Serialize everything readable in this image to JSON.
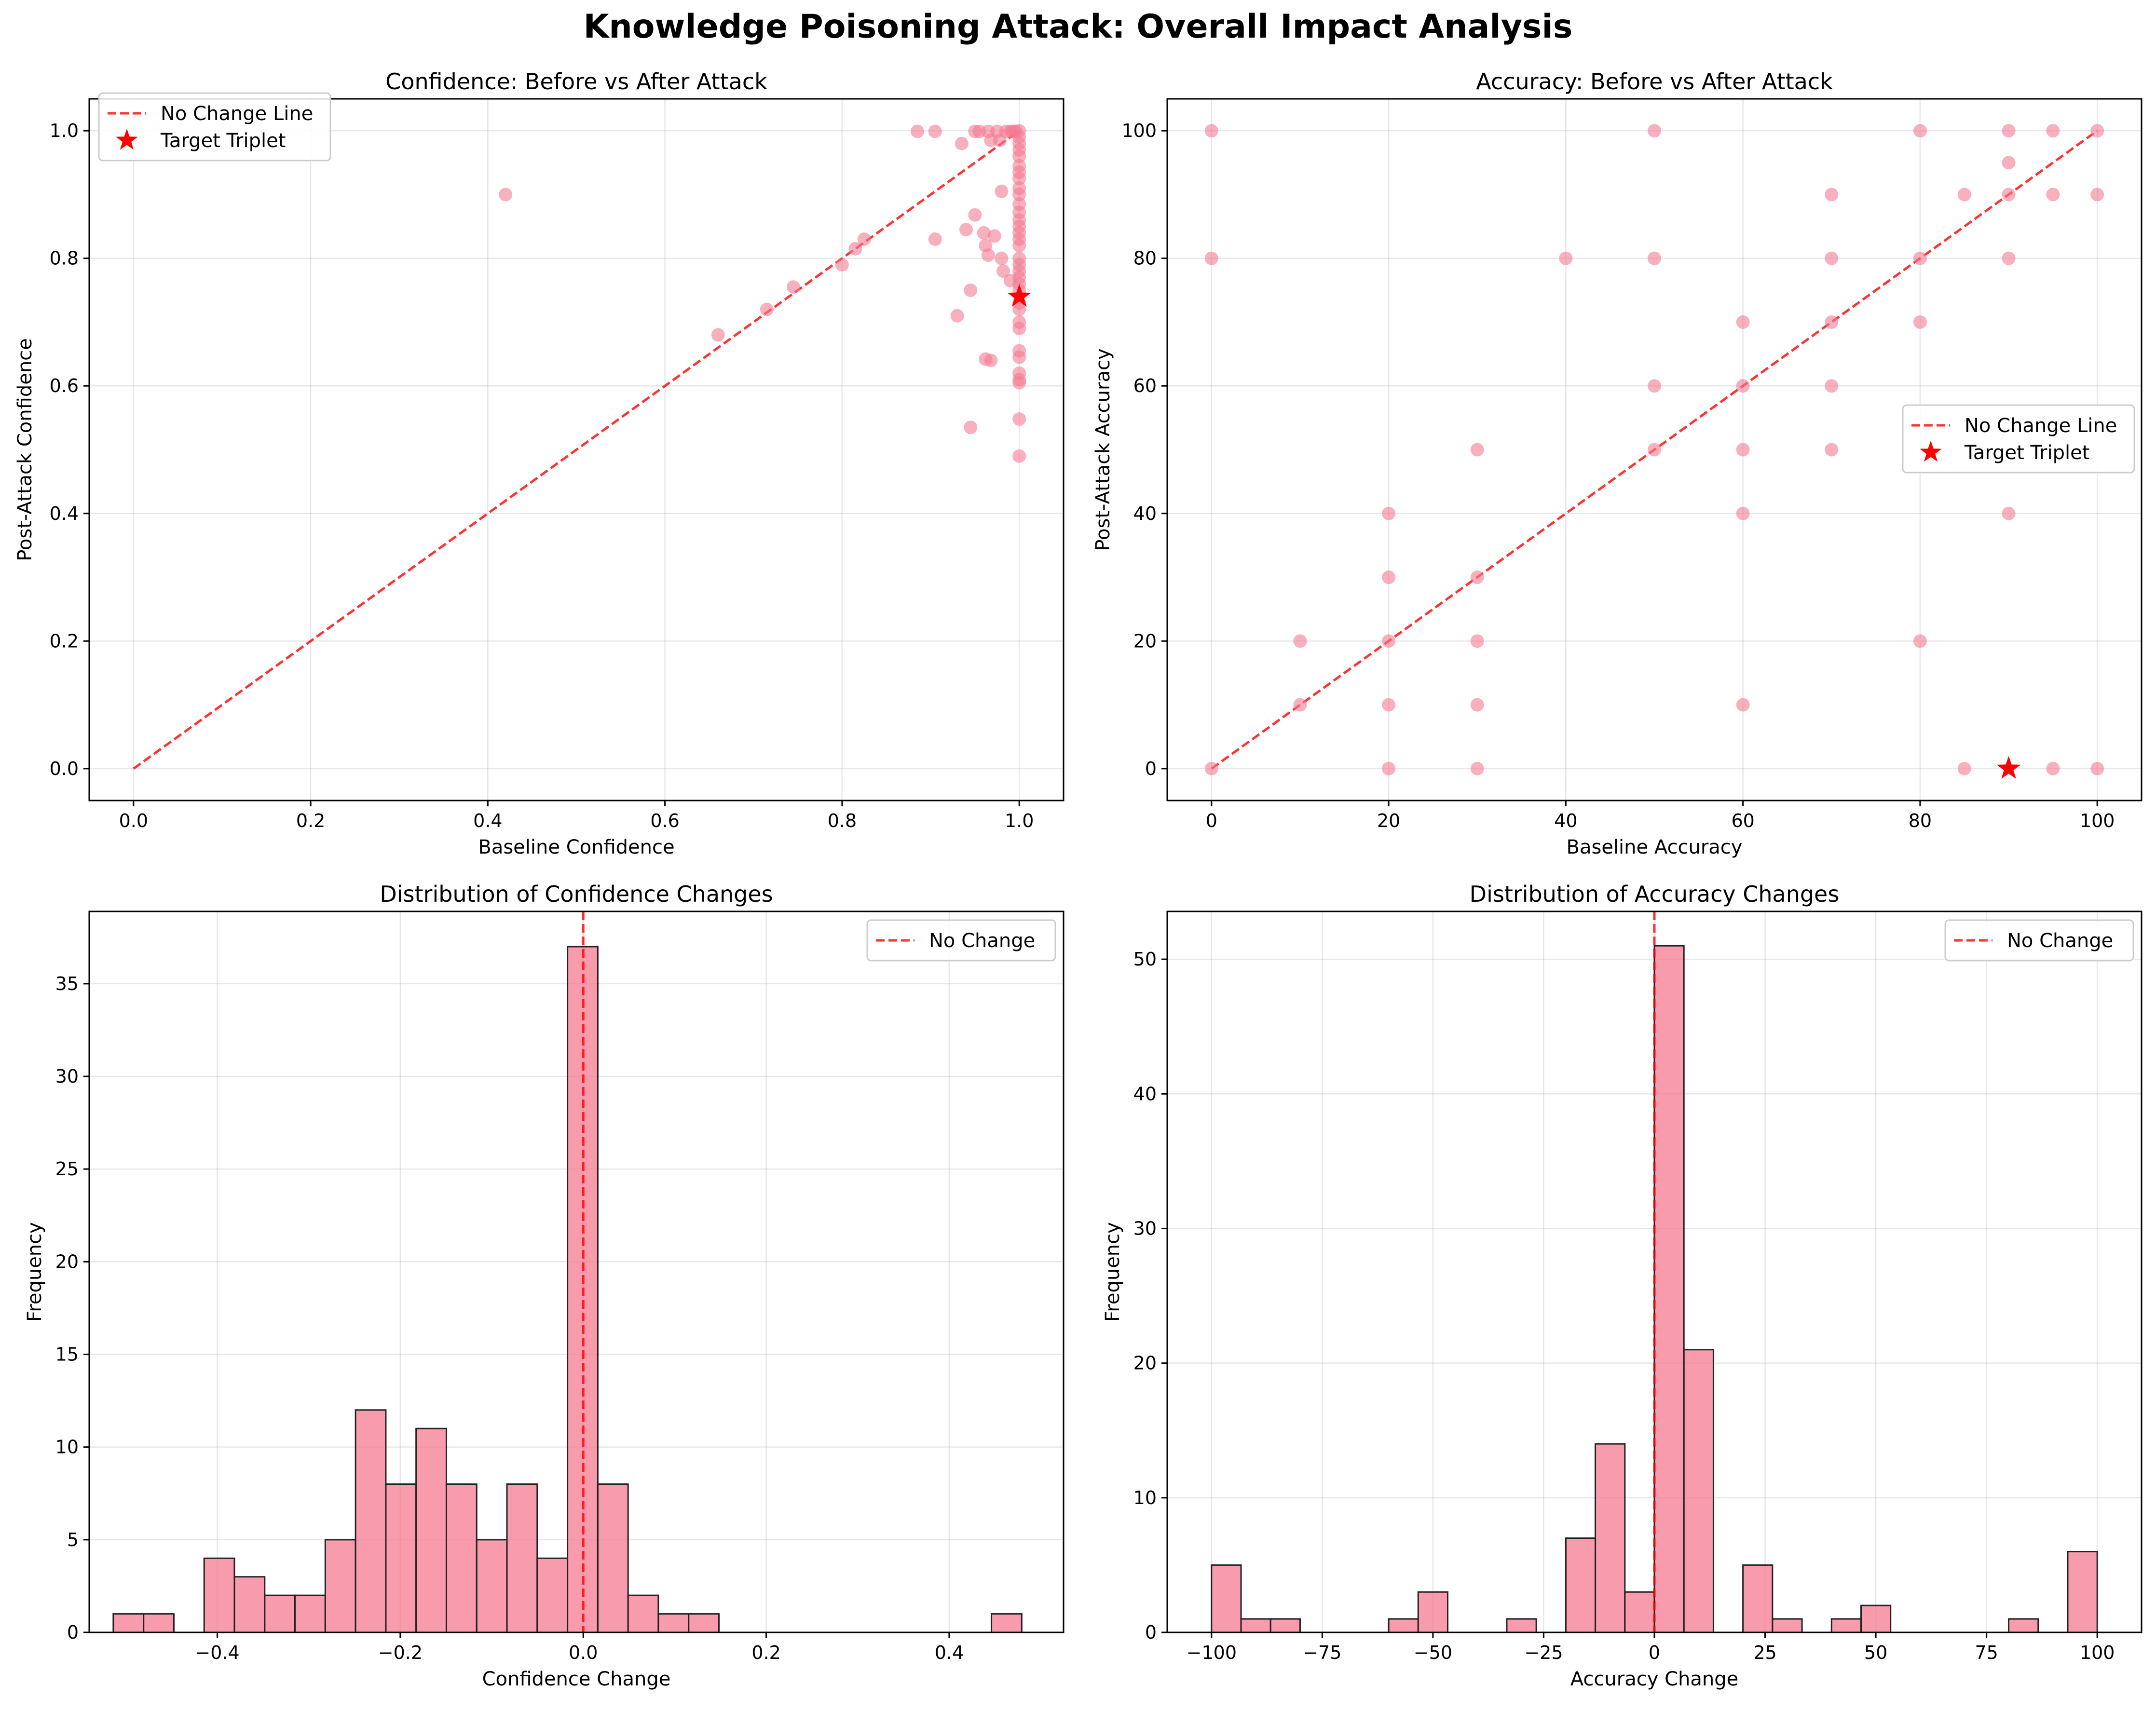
{
  "figure_title": "Knowledge Poisoning Attack: Overall Impact Analysis",
  "colors": {
    "point": "#f47a92",
    "bar": "#f57a92",
    "ref_line": "#ff0000",
    "target": "#ff0000",
    "edge": "#222222"
  },
  "chart_data": [
    {
      "id": "conf_scatter",
      "type": "scatter",
      "title": "Confidence: Before vs After Attack",
      "xlabel": "Baseline Confidence",
      "ylabel": "Post-Attack Confidence",
      "xlim": [
        -0.05,
        1.05
      ],
      "ylim": [
        -0.05,
        1.05
      ],
      "xticks": [
        0.0,
        0.2,
        0.4,
        0.6,
        0.8,
        1.0
      ],
      "yticks": [
        0.0,
        0.2,
        0.4,
        0.6,
        0.8,
        1.0
      ],
      "xtick_labels": [
        "0.0",
        "0.2",
        "0.4",
        "0.6",
        "0.8",
        "1.0"
      ],
      "ytick_labels": [
        "0.0",
        "0.2",
        "0.4",
        "0.6",
        "0.8",
        "1.0"
      ],
      "grid": true,
      "legend_position": "top-left",
      "legend": [
        "No Change Line",
        "Target Triplet"
      ],
      "reference_line": {
        "from": [
          0,
          0
        ],
        "to": [
          1,
          1
        ]
      },
      "target_point": [
        1.0,
        0.74
      ],
      "points": [
        [
          0.42,
          0.9
        ],
        [
          0.66,
          0.68
        ],
        [
          0.715,
          0.72
        ],
        [
          0.745,
          0.755
        ],
        [
          0.8,
          0.79
        ],
        [
          0.815,
          0.815
        ],
        [
          0.825,
          0.83
        ],
        [
          0.885,
          0.999
        ],
        [
          0.905,
          0.999
        ],
        [
          0.905,
          0.83
        ],
        [
          0.93,
          0.71
        ],
        [
          0.935,
          0.98
        ],
        [
          0.94,
          0.845
        ],
        [
          0.945,
          0.535
        ],
        [
          0.945,
          0.75
        ],
        [
          0.95,
          0.868
        ],
        [
          0.95,
          0.999
        ],
        [
          0.955,
          0.999
        ],
        [
          0.96,
          0.84
        ],
        [
          0.962,
          0.82
        ],
        [
          0.962,
          0.642
        ],
        [
          0.965,
          0.999
        ],
        [
          0.965,
          0.805
        ],
        [
          0.968,
          0.64
        ],
        [
          0.968,
          0.985
        ],
        [
          0.972,
          0.835
        ],
        [
          0.975,
          0.999
        ],
        [
          0.978,
          0.985
        ],
        [
          0.98,
          0.905
        ],
        [
          0.98,
          0.8
        ],
        [
          0.982,
          0.78
        ],
        [
          0.985,
          0.999
        ],
        [
          0.99,
          0.999
        ],
        [
          0.99,
          0.765
        ],
        [
          0.993,
          0.999
        ],
        [
          0.996,
          0.999
        ],
        [
          1.0,
          1.0
        ],
        [
          1.0,
          0.99
        ],
        [
          1.0,
          0.98
        ],
        [
          1.0,
          0.97
        ],
        [
          1.0,
          0.96
        ],
        [
          1.0,
          0.945
        ],
        [
          1.0,
          0.935
        ],
        [
          1.0,
          0.925
        ],
        [
          1.0,
          0.91
        ],
        [
          1.0,
          0.9
        ],
        [
          1.0,
          0.885
        ],
        [
          1.0,
          0.872
        ],
        [
          1.0,
          0.86
        ],
        [
          1.0,
          0.85
        ],
        [
          1.0,
          0.84
        ],
        [
          1.0,
          0.83
        ],
        [
          1.0,
          0.82
        ],
        [
          1.0,
          0.8
        ],
        [
          1.0,
          0.79
        ],
        [
          1.0,
          0.78
        ],
        [
          1.0,
          0.77
        ],
        [
          1.0,
          0.76
        ],
        [
          1.0,
          0.75
        ],
        [
          1.0,
          0.73
        ],
        [
          1.0,
          0.72
        ],
        [
          1.0,
          0.7
        ],
        [
          1.0,
          0.69
        ],
        [
          1.0,
          0.655
        ],
        [
          1.0,
          0.645
        ],
        [
          1.0,
          0.62
        ],
        [
          1.0,
          0.61
        ],
        [
          1.0,
          0.605
        ],
        [
          1.0,
          0.548
        ],
        [
          1.0,
          0.49
        ]
      ]
    },
    {
      "id": "acc_scatter",
      "type": "scatter",
      "title": "Accuracy: Before vs After Attack",
      "xlabel": "Baseline Accuracy",
      "ylabel": "Post-Attack Accuracy",
      "xlim": [
        -5,
        105
      ],
      "ylim": [
        -5,
        105
      ],
      "xticks": [
        0,
        20,
        40,
        60,
        80,
        100
      ],
      "yticks": [
        0,
        20,
        40,
        60,
        80,
        100
      ],
      "xtick_labels": [
        "0",
        "20",
        "40",
        "60",
        "80",
        "100"
      ],
      "ytick_labels": [
        "0",
        "20",
        "40",
        "60",
        "80",
        "100"
      ],
      "grid": true,
      "legend_position": "center-right",
      "legend": [
        "No Change Line",
        "Target Triplet"
      ],
      "reference_line": {
        "from": [
          0,
          0
        ],
        "to": [
          100,
          100
        ]
      },
      "target_point": [
        90,
        0
      ],
      "points": [
        [
          0,
          100
        ],
        [
          0,
          80
        ],
        [
          0,
          0
        ],
        [
          10,
          20
        ],
        [
          10,
          10
        ],
        [
          20,
          40
        ],
        [
          20,
          30
        ],
        [
          20,
          20
        ],
        [
          20,
          10
        ],
        [
          20,
          0
        ],
        [
          30,
          50
        ],
        [
          30,
          30
        ],
        [
          30,
          20
        ],
        [
          30,
          10
        ],
        [
          30,
          0
        ],
        [
          40,
          80
        ],
        [
          50,
          100
        ],
        [
          50,
          80
        ],
        [
          50,
          60
        ],
        [
          50,
          50
        ],
        [
          60,
          70
        ],
        [
          60,
          60
        ],
        [
          60,
          50
        ],
        [
          60,
          40
        ],
        [
          60,
          10
        ],
        [
          70,
          90
        ],
        [
          70,
          80
        ],
        [
          70,
          70
        ],
        [
          70,
          60
        ],
        [
          70,
          50
        ],
        [
          80,
          100
        ],
        [
          80,
          80
        ],
        [
          80,
          70
        ],
        [
          80,
          20
        ],
        [
          85,
          90
        ],
        [
          85,
          0
        ],
        [
          90,
          100
        ],
        [
          90,
          95
        ],
        [
          90,
          90
        ],
        [
          90,
          80
        ],
        [
          90,
          40
        ],
        [
          95,
          100
        ],
        [
          95,
          90
        ],
        [
          95,
          0
        ],
        [
          100,
          100
        ],
        [
          100,
          90
        ],
        [
          100,
          0
        ]
      ]
    },
    {
      "id": "conf_hist",
      "type": "bar",
      "title": "Distribution of Confidence Changes",
      "xlabel": "Confidence Change",
      "ylabel": "Frequency",
      "xlim": [
        -0.54,
        0.525
      ],
      "ylim": [
        0,
        38.9
      ],
      "xticks": [
        -0.4,
        -0.2,
        0.0,
        0.2,
        0.4
      ],
      "yticks": [
        0,
        5,
        10,
        15,
        20,
        25,
        30,
        35
      ],
      "xtick_labels": [
        "−0.4",
        "−0.2",
        "0.0",
        "0.2",
        "0.4"
      ],
      "ytick_labels": [
        "0",
        "5",
        "10",
        "15",
        "20",
        "25",
        "30",
        "35"
      ],
      "grid": true,
      "legend_position": "top-right",
      "legend": [
        "No Change"
      ],
      "reference_x": 0.0,
      "bin_start": -0.5137,
      "bin_width": 0.0331,
      "counts": [
        1,
        1,
        0,
        4,
        3,
        2,
        2,
        5,
        12,
        8,
        11,
        8,
        5,
        8,
        4,
        37,
        8,
        2,
        1,
        1,
        0,
        0,
        0,
        0,
        0,
        0,
        0,
        0,
        0,
        1
      ]
    },
    {
      "id": "acc_hist",
      "type": "bar",
      "title": "Distribution of Accuracy Changes",
      "xlabel": "Accuracy Change",
      "ylabel": "Frequency",
      "xlim": [
        -110,
        110
      ],
      "ylim": [
        0,
        53.55
      ],
      "xticks": [
        -100,
        -75,
        -50,
        -25,
        0,
        25,
        50,
        75,
        100
      ],
      "yticks": [
        0,
        10,
        20,
        30,
        40,
        50
      ],
      "xtick_labels": [
        "−100",
        "−75",
        "−50",
        "−25",
        "0",
        "25",
        "50",
        "75",
        "100"
      ],
      "ytick_labels": [
        "0",
        "10",
        "20",
        "30",
        "40",
        "50"
      ],
      "grid": true,
      "legend_position": "top-right",
      "legend": [
        "No Change"
      ],
      "reference_x": 0,
      "bin_start": -100,
      "bin_width": 6.6667,
      "counts": [
        5,
        1,
        1,
        0,
        0,
        0,
        1,
        3,
        0,
        0,
        1,
        0,
        7,
        14,
        3,
        51,
        21,
        0,
        5,
        1,
        0,
        1,
        2,
        0,
        0,
        0,
        0,
        1,
        0,
        6
      ]
    }
  ]
}
